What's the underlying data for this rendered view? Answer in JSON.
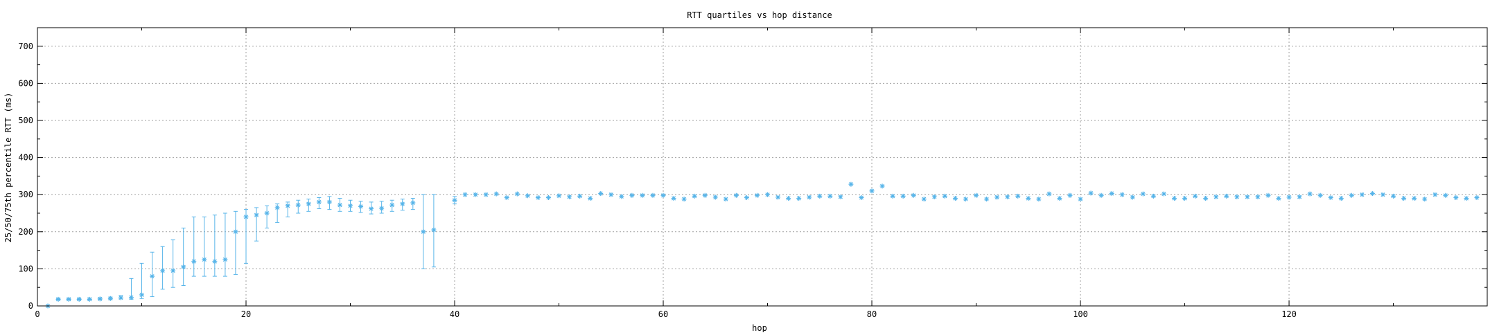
{
  "chart_data": {
    "type": "scatter",
    "title": "RTT quartiles vs hop distance",
    "xlabel": "hop",
    "ylabel": "25/50/75th percentile RTT (ms)",
    "xlim": [
      0,
      139
    ],
    "ylim": [
      0,
      750
    ],
    "xticks": [
      0,
      20,
      40,
      60,
      80,
      100,
      120
    ],
    "yticks": [
      0,
      100,
      200,
      300,
      400,
      500,
      600,
      700
    ],
    "grid": true,
    "marker": "asterisk",
    "error_bars": "25th-75th percentile",
    "color": "#56b4e9",
    "series": [
      {
        "values": [
          {
            "x": 1,
            "p25": 0,
            "p50": 0,
            "p75": 0
          },
          {
            "x": 2,
            "p25": 16,
            "p50": 18,
            "p75": 20
          },
          {
            "x": 3,
            "p25": 16,
            "p50": 18,
            "p75": 20
          },
          {
            "x": 4,
            "p25": 16,
            "p50": 18,
            "p75": 20
          },
          {
            "x": 5,
            "p25": 16,
            "p50": 18,
            "p75": 21
          },
          {
            "x": 6,
            "p25": 17,
            "p50": 19,
            "p75": 22
          },
          {
            "x": 7,
            "p25": 18,
            "p50": 20,
            "p75": 24
          },
          {
            "x": 8,
            "p25": 19,
            "p50": 22,
            "p75": 28
          },
          {
            "x": 9,
            "p25": 18,
            "p50": 23,
            "p75": 74
          },
          {
            "x": 10,
            "p25": 20,
            "p50": 30,
            "p75": 115
          },
          {
            "x": 11,
            "p25": 25,
            "p50": 80,
            "p75": 145
          },
          {
            "x": 12,
            "p25": 45,
            "p50": 95,
            "p75": 160
          },
          {
            "x": 13,
            "p25": 50,
            "p50": 95,
            "p75": 178
          },
          {
            "x": 14,
            "p25": 55,
            "p50": 105,
            "p75": 210
          },
          {
            "x": 15,
            "p25": 80,
            "p50": 120,
            "p75": 240
          },
          {
            "x": 16,
            "p25": 80,
            "p50": 125,
            "p75": 240
          },
          {
            "x": 17,
            "p25": 80,
            "p50": 120,
            "p75": 245
          },
          {
            "x": 18,
            "p25": 80,
            "p50": 125,
            "p75": 250
          },
          {
            "x": 19,
            "p25": 85,
            "p50": 200,
            "p75": 255
          },
          {
            "x": 20,
            "p25": 115,
            "p50": 240,
            "p75": 260
          },
          {
            "x": 21,
            "p25": 175,
            "p50": 245,
            "p75": 265
          },
          {
            "x": 22,
            "p25": 210,
            "p50": 250,
            "p75": 270
          },
          {
            "x": 23,
            "p25": 225,
            "p50": 265,
            "p75": 275
          },
          {
            "x": 24,
            "p25": 240,
            "p50": 270,
            "p75": 280
          },
          {
            "x": 25,
            "p25": 250,
            "p50": 272,
            "p75": 285
          },
          {
            "x": 26,
            "p25": 255,
            "p50": 275,
            "p75": 288
          },
          {
            "x": 27,
            "p25": 262,
            "p50": 280,
            "p75": 292
          },
          {
            "x": 28,
            "p25": 260,
            "p50": 280,
            "p75": 295
          },
          {
            "x": 29,
            "p25": 255,
            "p50": 272,
            "p75": 290
          },
          {
            "x": 30,
            "p25": 255,
            "p50": 270,
            "p75": 285
          },
          {
            "x": 31,
            "p25": 252,
            "p50": 268,
            "p75": 282
          },
          {
            "x": 32,
            "p25": 248,
            "p50": 262,
            "p75": 280
          },
          {
            "x": 33,
            "p25": 250,
            "p50": 263,
            "p75": 282
          },
          {
            "x": 34,
            "p25": 255,
            "p50": 272,
            "p75": 285
          },
          {
            "x": 35,
            "p25": 258,
            "p50": 275,
            "p75": 288
          },
          {
            "x": 36,
            "p25": 260,
            "p50": 278,
            "p75": 290
          },
          {
            "x": 37,
            "p25": 100,
            "p50": 200,
            "p75": 300
          },
          {
            "x": 38,
            "p25": 105,
            "p50": 205,
            "p75": 300
          },
          {
            "x": 40,
            "p25": 275,
            "p50": 285,
            "p75": 295
          },
          {
            "x": 41,
            "p50": 300
          },
          {
            "x": 42,
            "p50": 300
          },
          {
            "x": 43,
            "p50": 300
          },
          {
            "x": 44,
            "p50": 302
          },
          {
            "x": 45,
            "p50": 292
          },
          {
            "x": 46,
            "p50": 302
          },
          {
            "x": 47,
            "p50": 297
          },
          {
            "x": 48,
            "p50": 292
          },
          {
            "x": 49,
            "p50": 292
          },
          {
            "x": 50,
            "p50": 297
          },
          {
            "x": 51,
            "p50": 294
          },
          {
            "x": 52,
            "p50": 296
          },
          {
            "x": 53,
            "p50": 290
          },
          {
            "x": 54,
            "p50": 303
          },
          {
            "x": 55,
            "p50": 300
          },
          {
            "x": 56,
            "p50": 295
          },
          {
            "x": 57,
            "p50": 298
          },
          {
            "x": 58,
            "p50": 298
          },
          {
            "x": 59,
            "p50": 298
          },
          {
            "x": 60,
            "p50": 298
          },
          {
            "x": 61,
            "p50": 290
          },
          {
            "x": 62,
            "p50": 288
          },
          {
            "x": 63,
            "p50": 296
          },
          {
            "x": 64,
            "p50": 298
          },
          {
            "x": 65,
            "p50": 293
          },
          {
            "x": 66,
            "p50": 288
          },
          {
            "x": 67,
            "p50": 298
          },
          {
            "x": 68,
            "p50": 292
          },
          {
            "x": 69,
            "p50": 298
          },
          {
            "x": 70,
            "p50": 300
          },
          {
            "x": 71,
            "p50": 293
          },
          {
            "x": 72,
            "p50": 290
          },
          {
            "x": 73,
            "p50": 290
          },
          {
            "x": 74,
            "p50": 293
          },
          {
            "x": 75,
            "p50": 296
          },
          {
            "x": 76,
            "p50": 296
          },
          {
            "x": 77,
            "p50": 294
          },
          {
            "x": 78,
            "p50": 328
          },
          {
            "x": 79,
            "p50": 292
          },
          {
            "x": 80,
            "p50": 310
          },
          {
            "x": 81,
            "p50": 323
          },
          {
            "x": 82,
            "p50": 296
          },
          {
            "x": 83,
            "p50": 296
          },
          {
            "x": 84,
            "p50": 298
          },
          {
            "x": 85,
            "p50": 288
          },
          {
            "x": 86,
            "p50": 294
          },
          {
            "x": 87,
            "p50": 296
          },
          {
            "x": 88,
            "p50": 290
          },
          {
            "x": 89,
            "p50": 288
          },
          {
            "x": 90,
            "p50": 298
          },
          {
            "x": 91,
            "p50": 288
          },
          {
            "x": 92,
            "p50": 293
          },
          {
            "x": 93,
            "p50": 294
          },
          {
            "x": 94,
            "p50": 296
          },
          {
            "x": 95,
            "p50": 290
          },
          {
            "x": 96,
            "p50": 288
          },
          {
            "x": 97,
            "p50": 302
          },
          {
            "x": 98,
            "p50": 290
          },
          {
            "x": 99,
            "p50": 298
          },
          {
            "x": 100,
            "p50": 288
          },
          {
            "x": 101,
            "p50": 304
          },
          {
            "x": 102,
            "p50": 298
          },
          {
            "x": 103,
            "p50": 303
          },
          {
            "x": 104,
            "p50": 300
          },
          {
            "x": 105,
            "p50": 293
          },
          {
            "x": 106,
            "p50": 302
          },
          {
            "x": 107,
            "p50": 296
          },
          {
            "x": 108,
            "p50": 302
          },
          {
            "x": 109,
            "p50": 290
          },
          {
            "x": 110,
            "p50": 290
          },
          {
            "x": 111,
            "p50": 296
          },
          {
            "x": 112,
            "p50": 290
          },
          {
            "x": 113,
            "p50": 294
          },
          {
            "x": 114,
            "p50": 296
          },
          {
            "x": 115,
            "p50": 294
          },
          {
            "x": 116,
            "p50": 294
          },
          {
            "x": 117,
            "p50": 294
          },
          {
            "x": 118,
            "p50": 298
          },
          {
            "x": 119,
            "p50": 290
          },
          {
            "x": 120,
            "p50": 293
          },
          {
            "x": 121,
            "p50": 294
          },
          {
            "x": 122,
            "p50": 302
          },
          {
            "x": 123,
            "p50": 298
          },
          {
            "x": 124,
            "p50": 292
          },
          {
            "x": 125,
            "p50": 290
          },
          {
            "x": 126,
            "p50": 298
          },
          {
            "x": 127,
            "p50": 300
          },
          {
            "x": 128,
            "p50": 303
          },
          {
            "x": 129,
            "p50": 300
          },
          {
            "x": 130,
            "p50": 296
          },
          {
            "x": 131,
            "p50": 290
          },
          {
            "x": 132,
            "p50": 290
          },
          {
            "x": 133,
            "p50": 288
          },
          {
            "x": 134,
            "p50": 300
          },
          {
            "x": 135,
            "p50": 298
          },
          {
            "x": 136,
            "p50": 292
          },
          {
            "x": 137,
            "p50": 290
          },
          {
            "x": 138,
            "p50": 292
          }
        ]
      }
    ]
  }
}
